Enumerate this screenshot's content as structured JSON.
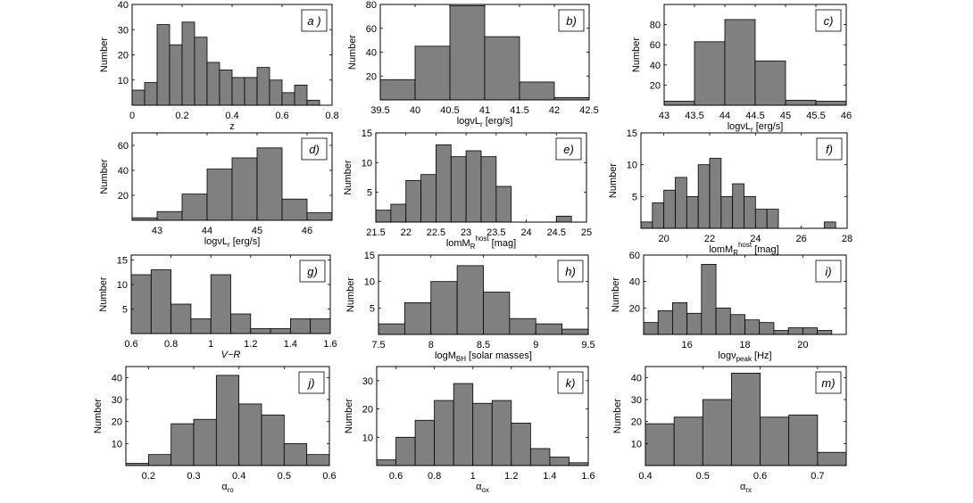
{
  "chart_data": [
    {
      "type": "bar",
      "panel": "a )",
      "ylabel": "Number",
      "xlabel": "z",
      "xlim": [
        0,
        0.8
      ],
      "ylim": [
        0,
        40
      ],
      "xticks": [
        "0",
        "0.2",
        "0.4",
        "0.6",
        "0.8"
      ],
      "xtick_values": [
        0,
        0.2,
        0.4,
        0.6,
        0.8
      ],
      "yticks": [
        "10",
        "20",
        "30",
        "40"
      ],
      "ytick_values": [
        10,
        20,
        30,
        40
      ],
      "bin_edges": [
        0,
        0.05,
        0.1,
        0.15,
        0.2,
        0.25,
        0.3,
        0.35,
        0.4,
        0.45,
        0.5,
        0.55,
        0.6,
        0.65,
        0.7,
        0.75
      ],
      "values": [
        6,
        9,
        32,
        24,
        33,
        27,
        17,
        14,
        11,
        11,
        15,
        10,
        5,
        8,
        2,
        1
      ]
    },
    {
      "type": "bar",
      "panel": "b)",
      "ylabel": "Number",
      "xlabel_parts": [
        {
          "t": "logνL"
        },
        {
          "t": "r",
          "sub": 1
        },
        {
          "t": " [erg/s]"
        }
      ],
      "xlim": [
        39.5,
        42.5
      ],
      "ylim": [
        0,
        80
      ],
      "xticks": [
        "39.5",
        "40",
        "40.5",
        "41",
        "41.5",
        "42",
        "42.5"
      ],
      "xtick_values": [
        39.5,
        40,
        40.5,
        41,
        41.5,
        42,
        42.5
      ],
      "yticks": [
        "20",
        "40",
        "60",
        "80"
      ],
      "ytick_values": [
        20,
        40,
        60,
        80
      ],
      "bin_edges": [
        39.5,
        40,
        40.5,
        41,
        41.5,
        42,
        42.5
      ],
      "values": [
        17,
        45,
        79,
        53,
        15,
        2
      ]
    },
    {
      "type": "bar",
      "panel": "c)",
      "ylabel": "Number",
      "xlabel_parts": [
        {
          "t": "logνL"
        },
        {
          "t": "r",
          "sub": 1
        },
        {
          "t": " [erg/s]"
        }
      ],
      "xlim": [
        43,
        46
      ],
      "ylim": [
        0,
        100
      ],
      "xticks": [
        "43",
        "43.5",
        "44",
        "44.5",
        "45",
        "45.5",
        "46"
      ],
      "xtick_values": [
        43,
        43.5,
        44,
        44.5,
        45,
        45.5,
        46
      ],
      "yticks": [
        "20",
        "40",
        "60",
        "80"
      ],
      "ytick_values": [
        20,
        40,
        60,
        80
      ],
      "bin_edges": [
        43,
        43.5,
        44,
        44.5,
        45,
        45.5,
        46
      ],
      "values": [
        4,
        63,
        85,
        44,
        5,
        4
      ]
    },
    {
      "type": "bar",
      "panel": "d)",
      "ylabel": "Number",
      "xlabel_parts": [
        {
          "t": "logνL"
        },
        {
          "t": "r",
          "sub": 1
        },
        {
          "t": "  [erg/s]"
        }
      ],
      "xlim": [
        42.5,
        46.5
      ],
      "ylim": [
        0,
        70
      ],
      "xticks": [
        "43",
        "44",
        "45",
        "46"
      ],
      "xtick_values": [
        43,
        44,
        45,
        46
      ],
      "yticks": [
        "20",
        "40",
        "60"
      ],
      "ytick_values": [
        20,
        40,
        60
      ],
      "bin_edges": [
        42.5,
        43,
        43.5,
        44,
        44.5,
        45,
        45.5,
        46,
        46.5
      ],
      "values": [
        2,
        7,
        21,
        41,
        50,
        58,
        17,
        6
      ]
    },
    {
      "type": "bar",
      "panel": "e)",
      "ylabel": "Number",
      "xlabel_parts": [
        {
          "t": "lomM"
        },
        {
          "t": "R",
          "sub": 1
        },
        {
          "t": "host",
          "sup": 1
        },
        {
          "t": " [mag]"
        }
      ],
      "xlim": [
        21.5,
        25
      ],
      "ylim": [
        0,
        15
      ],
      "xticks": [
        "21.5",
        "22",
        "22.5",
        "23",
        "23.5",
        "24",
        "24.5",
        "25"
      ],
      "xtick_values": [
        21.5,
        22,
        22.5,
        23,
        23.5,
        24,
        24.5,
        25
      ],
      "yticks": [
        "5",
        "10",
        "15"
      ],
      "ytick_values": [
        5,
        10,
        15
      ],
      "bin_edges": [
        21.5,
        21.75,
        22,
        22.25,
        22.5,
        22.75,
        23,
        23.25,
        23.5,
        23.75,
        24,
        24.25,
        24.5,
        24.75
      ],
      "values": [
        2,
        3,
        7,
        8,
        13,
        11,
        12,
        11,
        6,
        0,
        0,
        0,
        1
      ]
    },
    {
      "type": "bar",
      "panel": "f)",
      "ylabel": "Number",
      "xlabel_parts": [
        {
          "t": "lomM"
        },
        {
          "t": "R",
          "sub": 1
        },
        {
          "t": "host",
          "sup": 1
        },
        {
          "t": " [mag]"
        }
      ],
      "xlim": [
        19,
        28
      ],
      "ylim": [
        0,
        15
      ],
      "xticks": [
        "20",
        "22",
        "24",
        "26",
        "28"
      ],
      "xtick_values": [
        20,
        22,
        24,
        26,
        28
      ],
      "yticks": [
        "5",
        "10",
        "15"
      ],
      "ytick_values": [
        5,
        10,
        15
      ],
      "bin_edges": [
        19,
        19.5,
        20,
        20.5,
        21,
        21.5,
        22,
        22.5,
        23,
        23.5,
        24,
        24.5,
        25,
        25.5,
        26,
        26.5,
        27,
        27.5
      ],
      "values": [
        1,
        4,
        6,
        8,
        5,
        10,
        11,
        5,
        7,
        5,
        3,
        3,
        0,
        0,
        0,
        0,
        1
      ]
    },
    {
      "type": "bar",
      "panel": "g)",
      "ylabel": "Number",
      "xlabel": "V−R",
      "xlabel_italic": true,
      "xlim": [
        0.6,
        1.6
      ],
      "ylim": [
        0,
        16
      ],
      "xticks": [
        "0.6",
        "0.8",
        "1",
        "1.2",
        "1.4",
        "1.6"
      ],
      "xtick_values": [
        0.6,
        0.8,
        1,
        1.2,
        1.4,
        1.6
      ],
      "yticks": [
        "5",
        "10",
        "15"
      ],
      "ytick_values": [
        5,
        10,
        15
      ],
      "bin_edges": [
        0.6,
        0.7,
        0.8,
        0.9,
        1.0,
        1.1,
        1.2,
        1.3,
        1.4,
        1.5,
        1.6
      ],
      "values": [
        12,
        13,
        6,
        3,
        12,
        4,
        1,
        1,
        3,
        3
      ]
    },
    {
      "type": "bar",
      "panel": "h)",
      "ylabel": "Number",
      "xlabel_parts": [
        {
          "t": "logM"
        },
        {
          "t": "BH",
          "sub": 1
        },
        {
          "t": " [solar masses]"
        }
      ],
      "xlim": [
        7.5,
        9.5
      ],
      "ylim": [
        0,
        15
      ],
      "xticks": [
        "7.5",
        "8",
        "8.5",
        "9",
        "9.5"
      ],
      "xtick_values": [
        7.5,
        8,
        8.5,
        9,
        9.5
      ],
      "yticks": [
        "5",
        "10",
        "15"
      ],
      "ytick_values": [
        5,
        10,
        15
      ],
      "bin_edges": [
        7.5,
        7.75,
        8,
        8.25,
        8.5,
        8.75,
        9,
        9.25,
        9.5
      ],
      "values": [
        2,
        6,
        10,
        13,
        8,
        3,
        2,
        1
      ]
    },
    {
      "type": "bar",
      "panel": "i)",
      "ylabel": "Number",
      "xlabel_parts": [
        {
          "t": "logν"
        },
        {
          "t": "peak",
          "sub": 1
        },
        {
          "t": " [Hz]"
        }
      ],
      "xlim": [
        14.5,
        21.5
      ],
      "ylim": [
        0,
        60
      ],
      "xticks": [
        "16",
        "18",
        "20"
      ],
      "xtick_values": [
        16,
        18,
        20
      ],
      "yticks": [
        "20",
        "40",
        "60"
      ],
      "ytick_values": [
        20,
        40,
        60
      ],
      "bin_edges": [
        14.5,
        15,
        15.5,
        16,
        16.5,
        17,
        17.5,
        18,
        18.5,
        19,
        19.5,
        20,
        20.5,
        21
      ],
      "values": [
        9,
        18,
        24,
        16,
        53,
        20,
        15,
        11,
        9,
        3,
        5,
        5,
        3
      ]
    },
    {
      "type": "bar",
      "panel": "j)",
      "ylabel": "Number",
      "xlabel_parts": [
        {
          "t": "α"
        },
        {
          "t": "ro",
          "sub": 1
        }
      ],
      "xlim": [
        0.15,
        0.6
      ],
      "ylim": [
        0,
        45
      ],
      "xticks": [
        "0.2",
        "0.3",
        "0.4",
        "0.5",
        "0.6"
      ],
      "xtick_values": [
        0.2,
        0.3,
        0.4,
        0.5,
        0.6
      ],
      "yticks": [
        "10",
        "20",
        "30",
        "40"
      ],
      "ytick_values": [
        10,
        20,
        30,
        40
      ],
      "bin_edges": [
        0.15,
        0.2,
        0.25,
        0.3,
        0.35,
        0.4,
        0.45,
        0.5,
        0.55,
        0.6
      ],
      "values": [
        1,
        5,
        19,
        21,
        41,
        28,
        23,
        10,
        5
      ]
    },
    {
      "type": "bar",
      "panel": "k)",
      "ylabel": "Number",
      "xlabel_parts": [
        {
          "t": "α"
        },
        {
          "t": "ox",
          "sub": 1
        }
      ],
      "xlim": [
        0.5,
        1.6
      ],
      "ylim": [
        0,
        35
      ],
      "xticks": [
        "0.6",
        "0.8",
        "1",
        "1.2",
        "1.4",
        "1.6"
      ],
      "xtick_values": [
        0.6,
        0.8,
        1,
        1.2,
        1.4,
        1.6
      ],
      "yticks": [
        "10",
        "20",
        "30"
      ],
      "ytick_values": [
        10,
        20,
        30
      ],
      "bin_edges": [
        0.5,
        0.6,
        0.7,
        0.8,
        0.9,
        1.0,
        1.1,
        1.2,
        1.3,
        1.4,
        1.5,
        1.6
      ],
      "values": [
        2,
        10,
        16,
        23,
        29,
        22,
        23,
        15,
        6,
        3,
        1
      ]
    },
    {
      "type": "bar",
      "panel": "m)",
      "ylabel": "Number",
      "xlabel_parts": [
        {
          "t": "α"
        },
        {
          "t": "rx",
          "sub": 1
        }
      ],
      "xlim": [
        0.4,
        0.75
      ],
      "ylim": [
        0,
        45
      ],
      "xticks": [
        "0.4",
        "0.5",
        "0.6",
        "0.7"
      ],
      "xtick_values": [
        0.4,
        0.5,
        0.6,
        0.7
      ],
      "yticks": [
        "10",
        "20",
        "30",
        "40"
      ],
      "ytick_values": [
        10,
        20,
        30,
        40
      ],
      "bin_edges": [
        0.4,
        0.45,
        0.5,
        0.55,
        0.6,
        0.65,
        0.7,
        0.75
      ],
      "values": [
        19,
        22,
        30,
        42,
        22,
        23,
        6
      ]
    }
  ]
}
